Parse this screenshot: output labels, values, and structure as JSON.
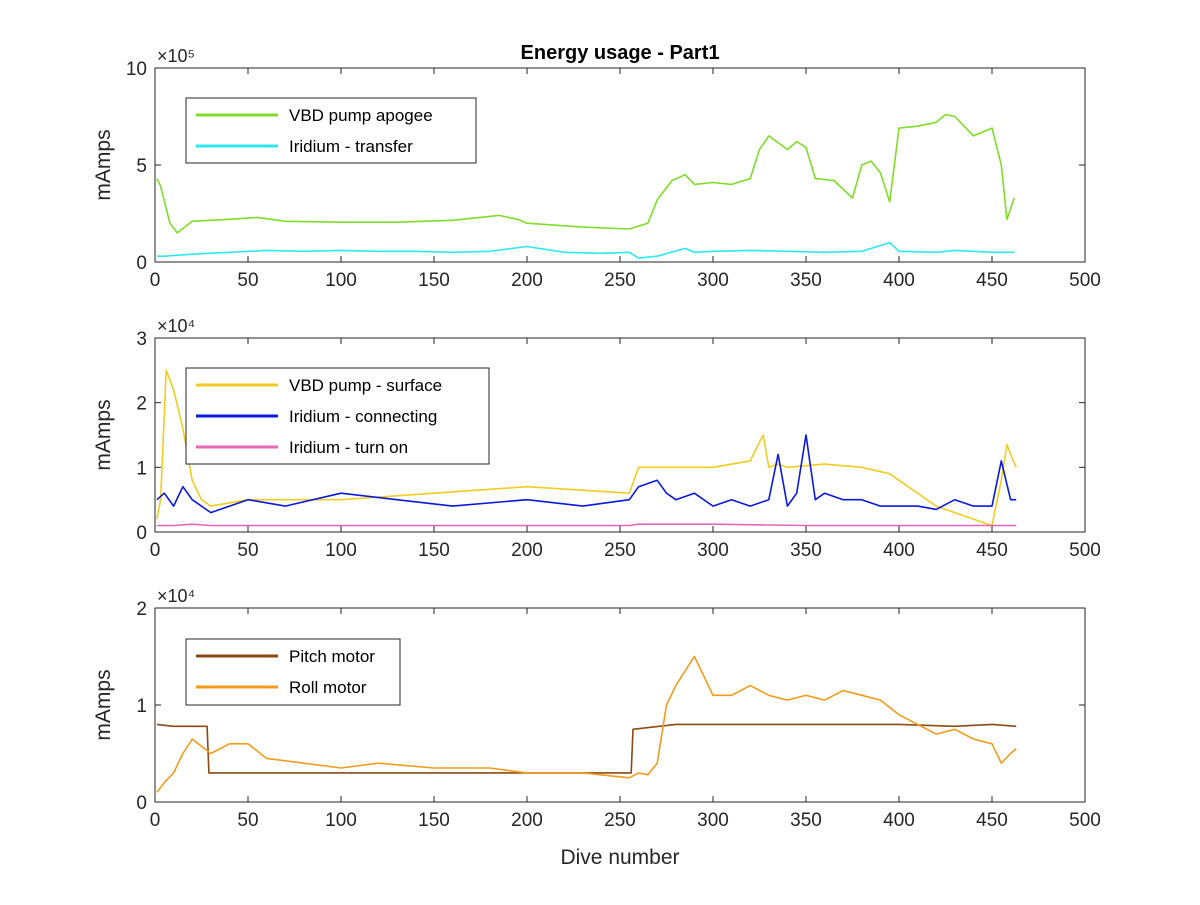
{
  "chart_data": [
    {
      "type": "line",
      "title": "Energy usage - Part1",
      "xlabel": "",
      "ylabel": "mAmps",
      "xlim": [
        0,
        500
      ],
      "ylim": [
        0,
        1000000
      ],
      "y_exponent": "×10⁵",
      "x_ticks": [
        "0",
        "50",
        "100",
        "150",
        "200",
        "250",
        "300",
        "350",
        "400",
        "450",
        "500"
      ],
      "y_ticks": [
        "0",
        "5",
        "10"
      ],
      "y_tick_values": [
        0,
        500000,
        1000000
      ],
      "legend_position": "top-left",
      "grid": false,
      "series": [
        {
          "name": "VBD pump apogee",
          "color": "#7fdd2a",
          "x": [
            1,
            3,
            8,
            12,
            20,
            40,
            55,
            70,
            100,
            130,
            160,
            185,
            195,
            200,
            230,
            255,
            265,
            270,
            278,
            285,
            290,
            300,
            310,
            320,
            325,
            330,
            340,
            345,
            350,
            355,
            365,
            375,
            380,
            385,
            390,
            395,
            400,
            410,
            420,
            425,
            430,
            440,
            450,
            455,
            458,
            462
          ],
          "y": [
            430000,
            390000,
            200000,
            150000,
            210000,
            220000,
            230000,
            210000,
            205000,
            205000,
            215000,
            240000,
            220000,
            200000,
            180000,
            170000,
            200000,
            320000,
            420000,
            450000,
            400000,
            410000,
            400000,
            430000,
            580000,
            650000,
            580000,
            620000,
            590000,
            430000,
            420000,
            330000,
            500000,
            520000,
            460000,
            310000,
            690000,
            700000,
            720000,
            760000,
            750000,
            650000,
            690000,
            500000,
            220000,
            330000
          ]
        },
        {
          "name": "Iridium - transfer",
          "color": "#2ee8f0",
          "x": [
            1,
            5,
            20,
            40,
            60,
            80,
            100,
            120,
            140,
            160,
            180,
            200,
            220,
            240,
            255,
            260,
            270,
            285,
            290,
            300,
            320,
            340,
            360,
            380,
            395,
            400,
            420,
            430,
            440,
            450,
            462
          ],
          "y": [
            30000,
            30000,
            40000,
            50000,
            60000,
            55000,
            60000,
            55000,
            55000,
            50000,
            55000,
            80000,
            50000,
            45000,
            50000,
            20000,
            30000,
            70000,
            50000,
            55000,
            60000,
            55000,
            50000,
            55000,
            100000,
            55000,
            50000,
            60000,
            55000,
            50000,
            50000
          ]
        }
      ]
    },
    {
      "type": "line",
      "title": "",
      "xlabel": "",
      "ylabel": "mAmps",
      "xlim": [
        0,
        500
      ],
      "ylim": [
        0,
        30000
      ],
      "y_exponent": "×10⁴",
      "x_ticks": [
        "0",
        "50",
        "100",
        "150",
        "200",
        "250",
        "300",
        "350",
        "400",
        "450",
        "500"
      ],
      "y_ticks": [
        "0",
        "1",
        "2",
        "3"
      ],
      "y_tick_values": [
        0,
        10000,
        20000,
        30000
      ],
      "legend_position": "top-left",
      "grid": false,
      "series": [
        {
          "name": "VBD pump - surface",
          "color": "#f2cc22",
          "x": [
            1,
            3,
            6,
            10,
            15,
            20,
            25,
            30,
            50,
            100,
            150,
            200,
            255,
            260,
            280,
            300,
            320,
            327,
            330,
            335,
            340,
            360,
            380,
            395,
            400,
            410,
            420,
            430,
            440,
            450,
            455,
            458,
            460,
            463
          ],
          "y": [
            2000,
            5000,
            25000,
            22000,
            16000,
            8000,
            5000,
            4000,
            5000,
            5000,
            6000,
            7000,
            6000,
            10000,
            10000,
            10000,
            11000,
            15000,
            10000,
            10500,
            10000,
            10500,
            10000,
            9000,
            8000,
            6000,
            4000,
            3000,
            2000,
            1000,
            8000,
            13500,
            12000,
            10000
          ]
        },
        {
          "name": "Iridium - connecting",
          "color": "#0a1ad8",
          "x": [
            1,
            5,
            10,
            15,
            20,
            30,
            50,
            70,
            100,
            130,
            160,
            200,
            230,
            255,
            260,
            270,
            275,
            280,
            290,
            300,
            310,
            320,
            330,
            335,
            340,
            345,
            350,
            355,
            360,
            370,
            380,
            390,
            400,
            410,
            420,
            430,
            440,
            450,
            455,
            460,
            463
          ],
          "y": [
            5000,
            6000,
            4000,
            7000,
            5000,
            3000,
            5000,
            4000,
            6000,
            5000,
            4000,
            5000,
            4000,
            5000,
            7000,
            8000,
            6000,
            5000,
            6000,
            4000,
            5000,
            4000,
            5000,
            12000,
            4000,
            6000,
            15000,
            5000,
            6000,
            5000,
            5000,
            4000,
            4000,
            4000,
            3500,
            5000,
            4000,
            4000,
            11000,
            5000,
            5000
          ]
        },
        {
          "name": "Iridium - turn on",
          "color": "#e767b7",
          "x": [
            1,
            10,
            20,
            30,
            50,
            100,
            150,
            200,
            255,
            260,
            300,
            350,
            400,
            430,
            450,
            463
          ],
          "y": [
            1000,
            1000,
            1200,
            1000,
            1000,
            1000,
            1000,
            1000,
            1000,
            1200,
            1200,
            1000,
            1000,
            1000,
            1000,
            1000
          ]
        }
      ]
    },
    {
      "type": "line",
      "title": "",
      "xlabel": "Dive number",
      "ylabel": "mAmps",
      "xlim": [
        0,
        500
      ],
      "ylim": [
        0,
        20000
      ],
      "y_exponent": "×10⁴",
      "x_ticks": [
        "0",
        "50",
        "100",
        "150",
        "200",
        "250",
        "300",
        "350",
        "400",
        "450",
        "500"
      ],
      "y_ticks": [
        "0",
        "1",
        "2"
      ],
      "y_tick_values": [
        0,
        10000,
        20000
      ],
      "legend_position": "top-left",
      "grid": false,
      "series": [
        {
          "name": "Pitch motor",
          "color": "#8b4a14",
          "x": [
            1,
            10,
            20,
            28,
            29,
            40,
            60,
            80,
            100,
            150,
            200,
            250,
            256,
            257,
            280,
            300,
            350,
            400,
            430,
            450,
            463
          ],
          "y": [
            8000,
            7800,
            7800,
            7800,
            3000,
            3000,
            3000,
            3000,
            3000,
            3000,
            3000,
            3000,
            3000,
            7500,
            8000,
            8000,
            8000,
            8000,
            7800,
            8000,
            7800
          ]
        },
        {
          "name": "Roll motor",
          "color": "#f49b1e",
          "x": [
            1,
            5,
            10,
            15,
            20,
            30,
            40,
            50,
            60,
            80,
            100,
            120,
            150,
            180,
            200,
            230,
            255,
            260,
            265,
            270,
            275,
            280,
            290,
            300,
            310,
            320,
            330,
            340,
            350,
            360,
            370,
            380,
            390,
            400,
            410,
            420,
            430,
            440,
            450,
            455,
            460,
            463
          ],
          "y": [
            1000,
            2000,
            3000,
            5000,
            6500,
            5000,
            6000,
            6000,
            4500,
            4000,
            3500,
            4000,
            3500,
            3500,
            3000,
            3000,
            2500,
            3000,
            2800,
            4000,
            10000,
            12000,
            15000,
            11000,
            11000,
            12000,
            11000,
            10500,
            11000,
            10500,
            11500,
            11000,
            10500,
            9000,
            8000,
            7000,
            7500,
            6500,
            6000,
            4000,
            5000,
            5500
          ]
        }
      ]
    }
  ]
}
